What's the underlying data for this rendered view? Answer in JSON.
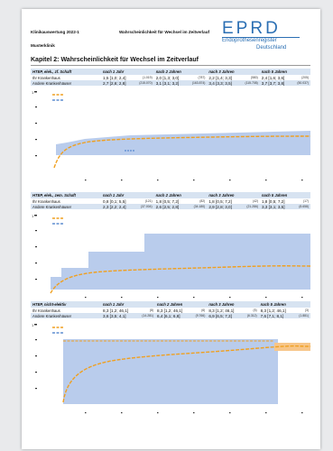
{
  "header": {
    "report_title": "Klinikauswertung 2022-1",
    "report_subject": "Wahrscheinlichkeit für Wechsel im Zeitverlauf",
    "clinic": "Musterklinik"
  },
  "logo": {
    "wordmark": "EPRD",
    "line1": "Endoprothesenregister",
    "line2": "Deutschland",
    "color": "#2b6fb3"
  },
  "chapter_title": "Kapitel 2: Wahrscheinlichkeit für Wechsel im Zeitverlauf",
  "colors": {
    "table_header_bg": "#d7e3f1",
    "ci_band": "#b9ccec",
    "curve_hospital": "#f0a020",
    "curve_others": "#3f78c7"
  },
  "sections": [
    {
      "columns": [
        "HTEP, elek., zf. Schaft",
        "nach 1 Jahr",
        "nach 2 Jahren",
        "nach 3 Jahren",
        "nach 5 Jahren"
      ],
      "rows": [
        {
          "label": "Ihr Krankenhaus",
          "cells": [
            {
              "v": "1,5  [1,0; 2,4]",
              "n": "(1.019)"
            },
            {
              "v": "2,0  [1,3; 3,0]",
              "n": "(787)"
            },
            {
              "v": "2,2  [1,4; 3,3]",
              "n": "(580)"
            },
            {
              "v": "2,4  [1,6; 3,6]",
              "n": "(205)"
            }
          ]
        },
        {
          "label": "Andere Krankenhäuser",
          "cells": [
            {
              "v": "2,7  [2,6; 2,8]",
              "n": "(215.070)"
            },
            {
              "v": "3,1  [3,1; 3,2]",
              "n": "(163.874)"
            },
            {
              "v": "3,4  [3,3; 3,5]",
              "n": "(115.708)"
            },
            {
              "v": "3,7  [3,7; 3,8]",
              "n": "(50.037)"
            }
          ]
        }
      ]
    },
    {
      "columns": [
        "HTEP, elek., zem. Schaft",
        "nach 1 Jahr",
        "nach 2 Jahren",
        "nach 3 Jahren",
        "nach 5 Jahren"
      ],
      "rows": [
        {
          "label": "Ihr Krankenhaus",
          "cells": [
            {
              "v": "0,8  [0,1; 5,5]",
              "n": "(121)"
            },
            {
              "v": "1,8  [0,5; 7,2]",
              "n": "(82)"
            },
            {
              "v": "1,8  [0,5; 7,2]",
              "n": "(42)"
            },
            {
              "v": "1,8  [0,5; 7,2]",
              "n": "(17)"
            }
          ]
        },
        {
          "label": "Andere Krankenhäuser",
          "cells": [
            {
              "v": "2,3  [2,2; 2,4]",
              "n": "(37.004)"
            },
            {
              "v": "2,6  [2,5; 2,8]",
              "n": "(34.180)"
            },
            {
              "v": "2,9  [2,8; 3,0]",
              "n": "(21.286)"
            },
            {
              "v": "3,3  [3,1; 3,5]",
              "n": "(8.658)"
            }
          ]
        }
      ]
    },
    {
      "columns": [
        "HTEP, nicht-elektiv",
        "nach 1 Jahr",
        "nach 2 Jahren",
        "nach 3 Jahren",
        "nach 5 Jahren"
      ],
      "rows": [
        {
          "label": "Ihr Krankenhaus",
          "cells": [
            {
              "v": "8,3  [1,2; 46,1]",
              "n": "(8)"
            },
            {
              "v": "8,3  [1,2; 46,1]",
              "n": "(6)"
            },
            {
              "v": "8,3  [1,2; 46,1]",
              "n": "(5)"
            },
            {
              "v": "8,3  [1,2; 46,1]",
              "n": "(3)"
            }
          ]
        },
        {
          "label": "Andere Krankenhäuser",
          "cells": [
            {
              "v": "3,6  [3,5; 4,1]",
              "n": "(14.281)"
            },
            {
              "v": "6,4  [6,1; 6,8]",
              "n": "(9.766)"
            },
            {
              "v": "6,9  [6,5; 7,3]",
              "n": "(6.312)"
            },
            {
              "v": "7,6  [7,1; 8,1]",
              "n": "(1.881)"
            }
          ]
        }
      ]
    }
  ]
}
